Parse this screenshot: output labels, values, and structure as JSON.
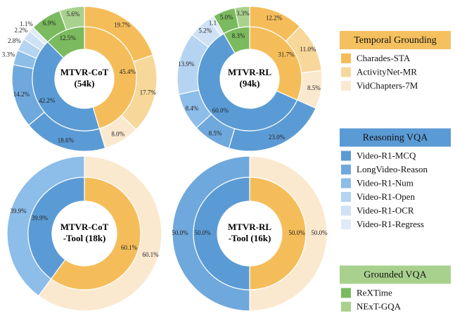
{
  "chart_data": [
    {
      "type": "donut",
      "center_label": [
        "MTVR-CoT",
        "(54k)"
      ],
      "inner": {
        "values": [
          45.4,
          42.2,
          12.5
        ],
        "value_labels": [
          "45.4%",
          "42.2%",
          "12.5%"
        ],
        "colors": [
          "#f5bd5a",
          "#5b9bd5",
          "#7bba5e"
        ]
      },
      "outer": {
        "values": [
          19.7,
          17.7,
          8.0,
          18.6,
          14.2,
          3.3,
          2.8,
          2.2,
          1.1,
          6.9,
          5.6
        ],
        "value_labels": [
          "19.7%",
          "17.7%",
          "8.0%",
          "18.6%",
          "14.2%",
          "3.3%",
          "2.8%",
          "2.2%",
          "1.1%",
          "6.9%",
          "5.6%"
        ],
        "colors": [
          "#f5bd5a",
          "#f7d89a",
          "#fbe9cf",
          "#5b9bd5",
          "#6fa8dc",
          "#8dbde9",
          "#b4d4f1",
          "#cfe2f5",
          "#deebf7",
          "#7bba5e",
          "#a9d18e"
        ]
      }
    },
    {
      "type": "donut",
      "center_label": [
        "MTVR-RL",
        "(94k)"
      ],
      "inner": {
        "values": [
          31.7,
          60.0,
          8.3
        ],
        "value_labels": [
          "31.7%",
          "60.0%",
          "8.3%"
        ],
        "colors": [
          "#f5bd5a",
          "#5b9bd5",
          "#7bba5e"
        ]
      },
      "outer": {
        "values": [
          12.2,
          11.0,
          8.5,
          23.0,
          8.5,
          8.4,
          13.9,
          5.2,
          1.1,
          5.0,
          3.3
        ],
        "value_labels": [
          "12.2%",
          "11.0%",
          "8.5%",
          "23.0%",
          "8.5%",
          "8.4%",
          "13.9%",
          "5.2%",
          "1.1%",
          "5.0%",
          "3.3%"
        ],
        "colors": [
          "#f5bd5a",
          "#f7d89a",
          "#fbe9cf",
          "#5b9bd5",
          "#6fa8dc",
          "#8dbde9",
          "#b4d4f1",
          "#cfe2f5",
          "#deebf7",
          "#7bba5e",
          "#a9d18e"
        ]
      }
    },
    {
      "type": "donut",
      "center_label": [
        "MTVR-CoT",
        "-Tool (18k)"
      ],
      "inner": {
        "values": [
          60.1,
          39.9
        ],
        "value_labels": [
          "60.1%",
          "39.9%"
        ],
        "colors": [
          "#f5bd5a",
          "#5b9bd5"
        ]
      },
      "outer": {
        "values": [
          60.1,
          39.9
        ],
        "value_labels": [
          "60.1%",
          "39.9%"
        ],
        "colors": [
          "#fbe9cf",
          "#8dbde9"
        ]
      }
    },
    {
      "type": "donut",
      "center_label": [
        "MTVR-RL",
        "-Tool (16k)"
      ],
      "inner": {
        "values": [
          50.0,
          50.0
        ],
        "value_labels": [
          "50.0%",
          "50.0%"
        ],
        "colors": [
          "#f5bd5a",
          "#5b9bd5"
        ]
      },
      "outer": {
        "values": [
          50.0,
          50.0
        ],
        "value_labels": [
          "50.0%",
          "50.0%"
        ],
        "colors": [
          "#fbe9cf",
          "#6fa8dc"
        ]
      }
    },
    {
      "type": "legend",
      "groups": [
        {
          "title": "Temporal Grounding",
          "color": "#f5c060",
          "items": [
            {
              "name": "Charades-STA",
              "color": "#f5bd5a"
            },
            {
              "name": "ActivityNet-MR",
              "color": "#f7d89a"
            },
            {
              "name": "VidChapters-7M",
              "color": "#fbe9cf"
            }
          ]
        },
        {
          "title": "Reasoning VQA",
          "color": "#5b9bd5",
          "items": [
            {
              "name": "Video-R1-MCQ",
              "color": "#5b9bd5"
            },
            {
              "name": "LongVideo-Reason",
              "color": "#6fa8dc"
            },
            {
              "name": "Video-R1-Num",
              "color": "#8dbde9"
            },
            {
              "name": "Video-R1-Open",
              "color": "#b4d4f1"
            },
            {
              "name": "Video-R1-OCR",
              "color": "#cfe2f5"
            },
            {
              "name": "Video-R1-Regress",
              "color": "#deebf7"
            }
          ]
        },
        {
          "title": "Grounded VQA",
          "color": "#a9d18e",
          "items": [
            {
              "name": "ReXTime",
              "color": "#7bba5e"
            },
            {
              "name": "NExT-GQA",
              "color": "#a9d18e"
            }
          ]
        }
      ]
    }
  ]
}
